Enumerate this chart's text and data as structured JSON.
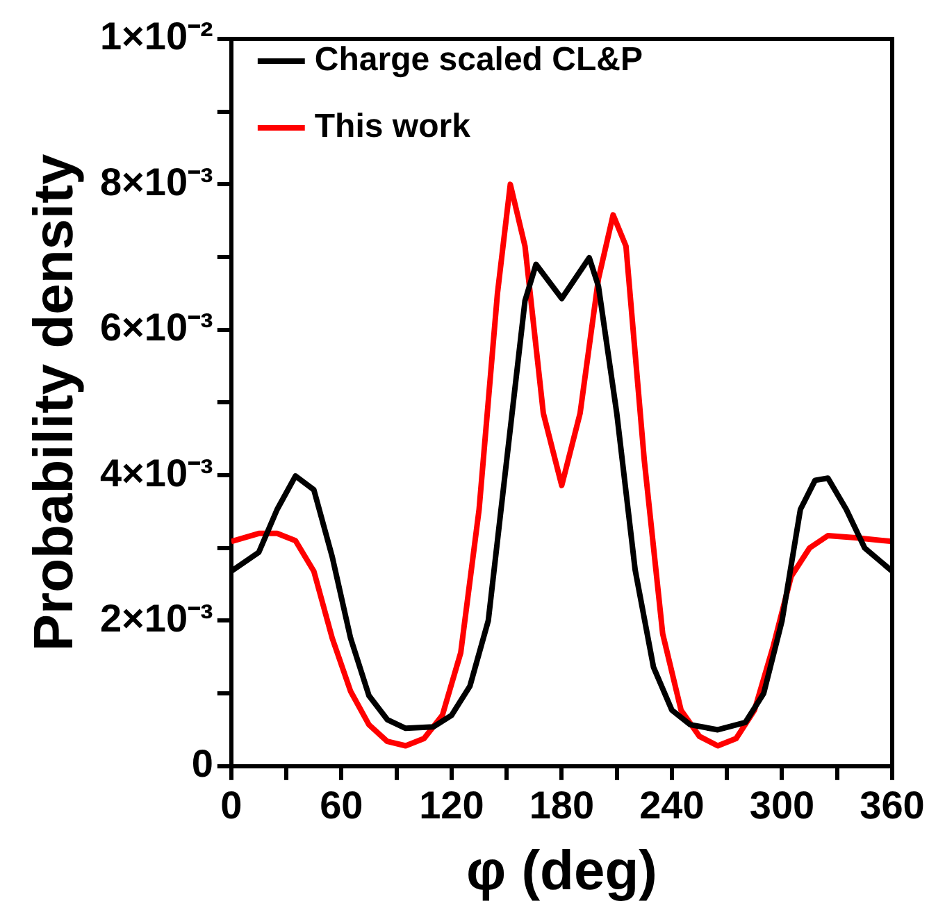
{
  "chart_data": {
    "type": "line",
    "xlabel": "φ (deg)",
    "ylabel": "Probability density",
    "xlim": [
      0,
      360
    ],
    "ylim": [
      0,
      0.01
    ],
    "xticks": [
      0,
      {
        "value": 30,
        "label": null
      },
      60,
      {
        "value": 90,
        "label": null
      },
      120,
      {
        "value": 150,
        "label": null
      },
      180,
      {
        "value": 210,
        "label": null
      },
      240,
      {
        "value": 270,
        "label": null
      },
      300,
      {
        "value": 330,
        "label": null
      },
      360
    ],
    "yticks": [
      0,
      {
        "value": 0.001,
        "label": null
      },
      {
        "value": 0.002,
        "label": "2×10⁻³"
      },
      {
        "value": 0.003,
        "label": null
      },
      {
        "value": 0.004,
        "label": "4×10⁻³"
      },
      {
        "value": 0.005,
        "label": null
      },
      {
        "value": 0.006,
        "label": "6×10⁻³"
      },
      {
        "value": 0.007,
        "label": null
      },
      {
        "value": 0.008,
        "label": "8×10⁻³"
      },
      {
        "value": 0.009,
        "label": null
      },
      {
        "value": 0.01,
        "label": "1×10⁻²"
      }
    ],
    "legend": "top left",
    "marker": "none",
    "line_style": "solid",
    "grid": false,
    "series": [
      {
        "name": "Charge scaled CL&P",
        "color": "#000000",
        "x": [
          0,
          15,
          25,
          35,
          45,
          55,
          65,
          75,
          85,
          95,
          110,
          120,
          130,
          140,
          150,
          160,
          166,
          180,
          195,
          200,
          210,
          220,
          230,
          240,
          250,
          265,
          280,
          290,
          300,
          310,
          318,
          325,
          335,
          345,
          360
        ],
        "values": [
          0.00268,
          0.00294,
          0.00353,
          0.00399,
          0.0038,
          0.00288,
          0.00176,
          0.00097,
          0.00064,
          0.00052,
          0.00054,
          0.0007,
          0.0011,
          0.002,
          0.0042,
          0.0064,
          0.0069,
          0.00643,
          0.00699,
          0.0066,
          0.00485,
          0.0027,
          0.00136,
          0.00077,
          0.00057,
          0.0005,
          0.0006,
          0.001,
          0.002,
          0.00353,
          0.00393,
          0.00396,
          0.00353,
          0.003,
          0.00268
        ]
      },
      {
        "name": "This work",
        "color": "#ff0000",
        "x": [
          0,
          15,
          25,
          35,
          45,
          55,
          65,
          75,
          85,
          95,
          105,
          115,
          125,
          135,
          145,
          152,
          160,
          170,
          180,
          190,
          200,
          208,
          215,
          225,
          235,
          245,
          255,
          265,
          275,
          285,
          295,
          305,
          315,
          325,
          340,
          360
        ],
        "values": [
          0.00309,
          0.0032,
          0.0032,
          0.0031,
          0.00268,
          0.00176,
          0.00103,
          0.00057,
          0.00034,
          0.00028,
          0.00038,
          0.0007,
          0.00156,
          0.00353,
          0.0065,
          0.008,
          0.00715,
          0.00485,
          0.00386,
          0.00485,
          0.0067,
          0.00758,
          0.00715,
          0.0042,
          0.00182,
          0.00077,
          0.00041,
          0.00028,
          0.00038,
          0.00077,
          0.00163,
          0.00261,
          0.003,
          0.00317,
          0.00314,
          0.00309
        ]
      }
    ]
  }
}
